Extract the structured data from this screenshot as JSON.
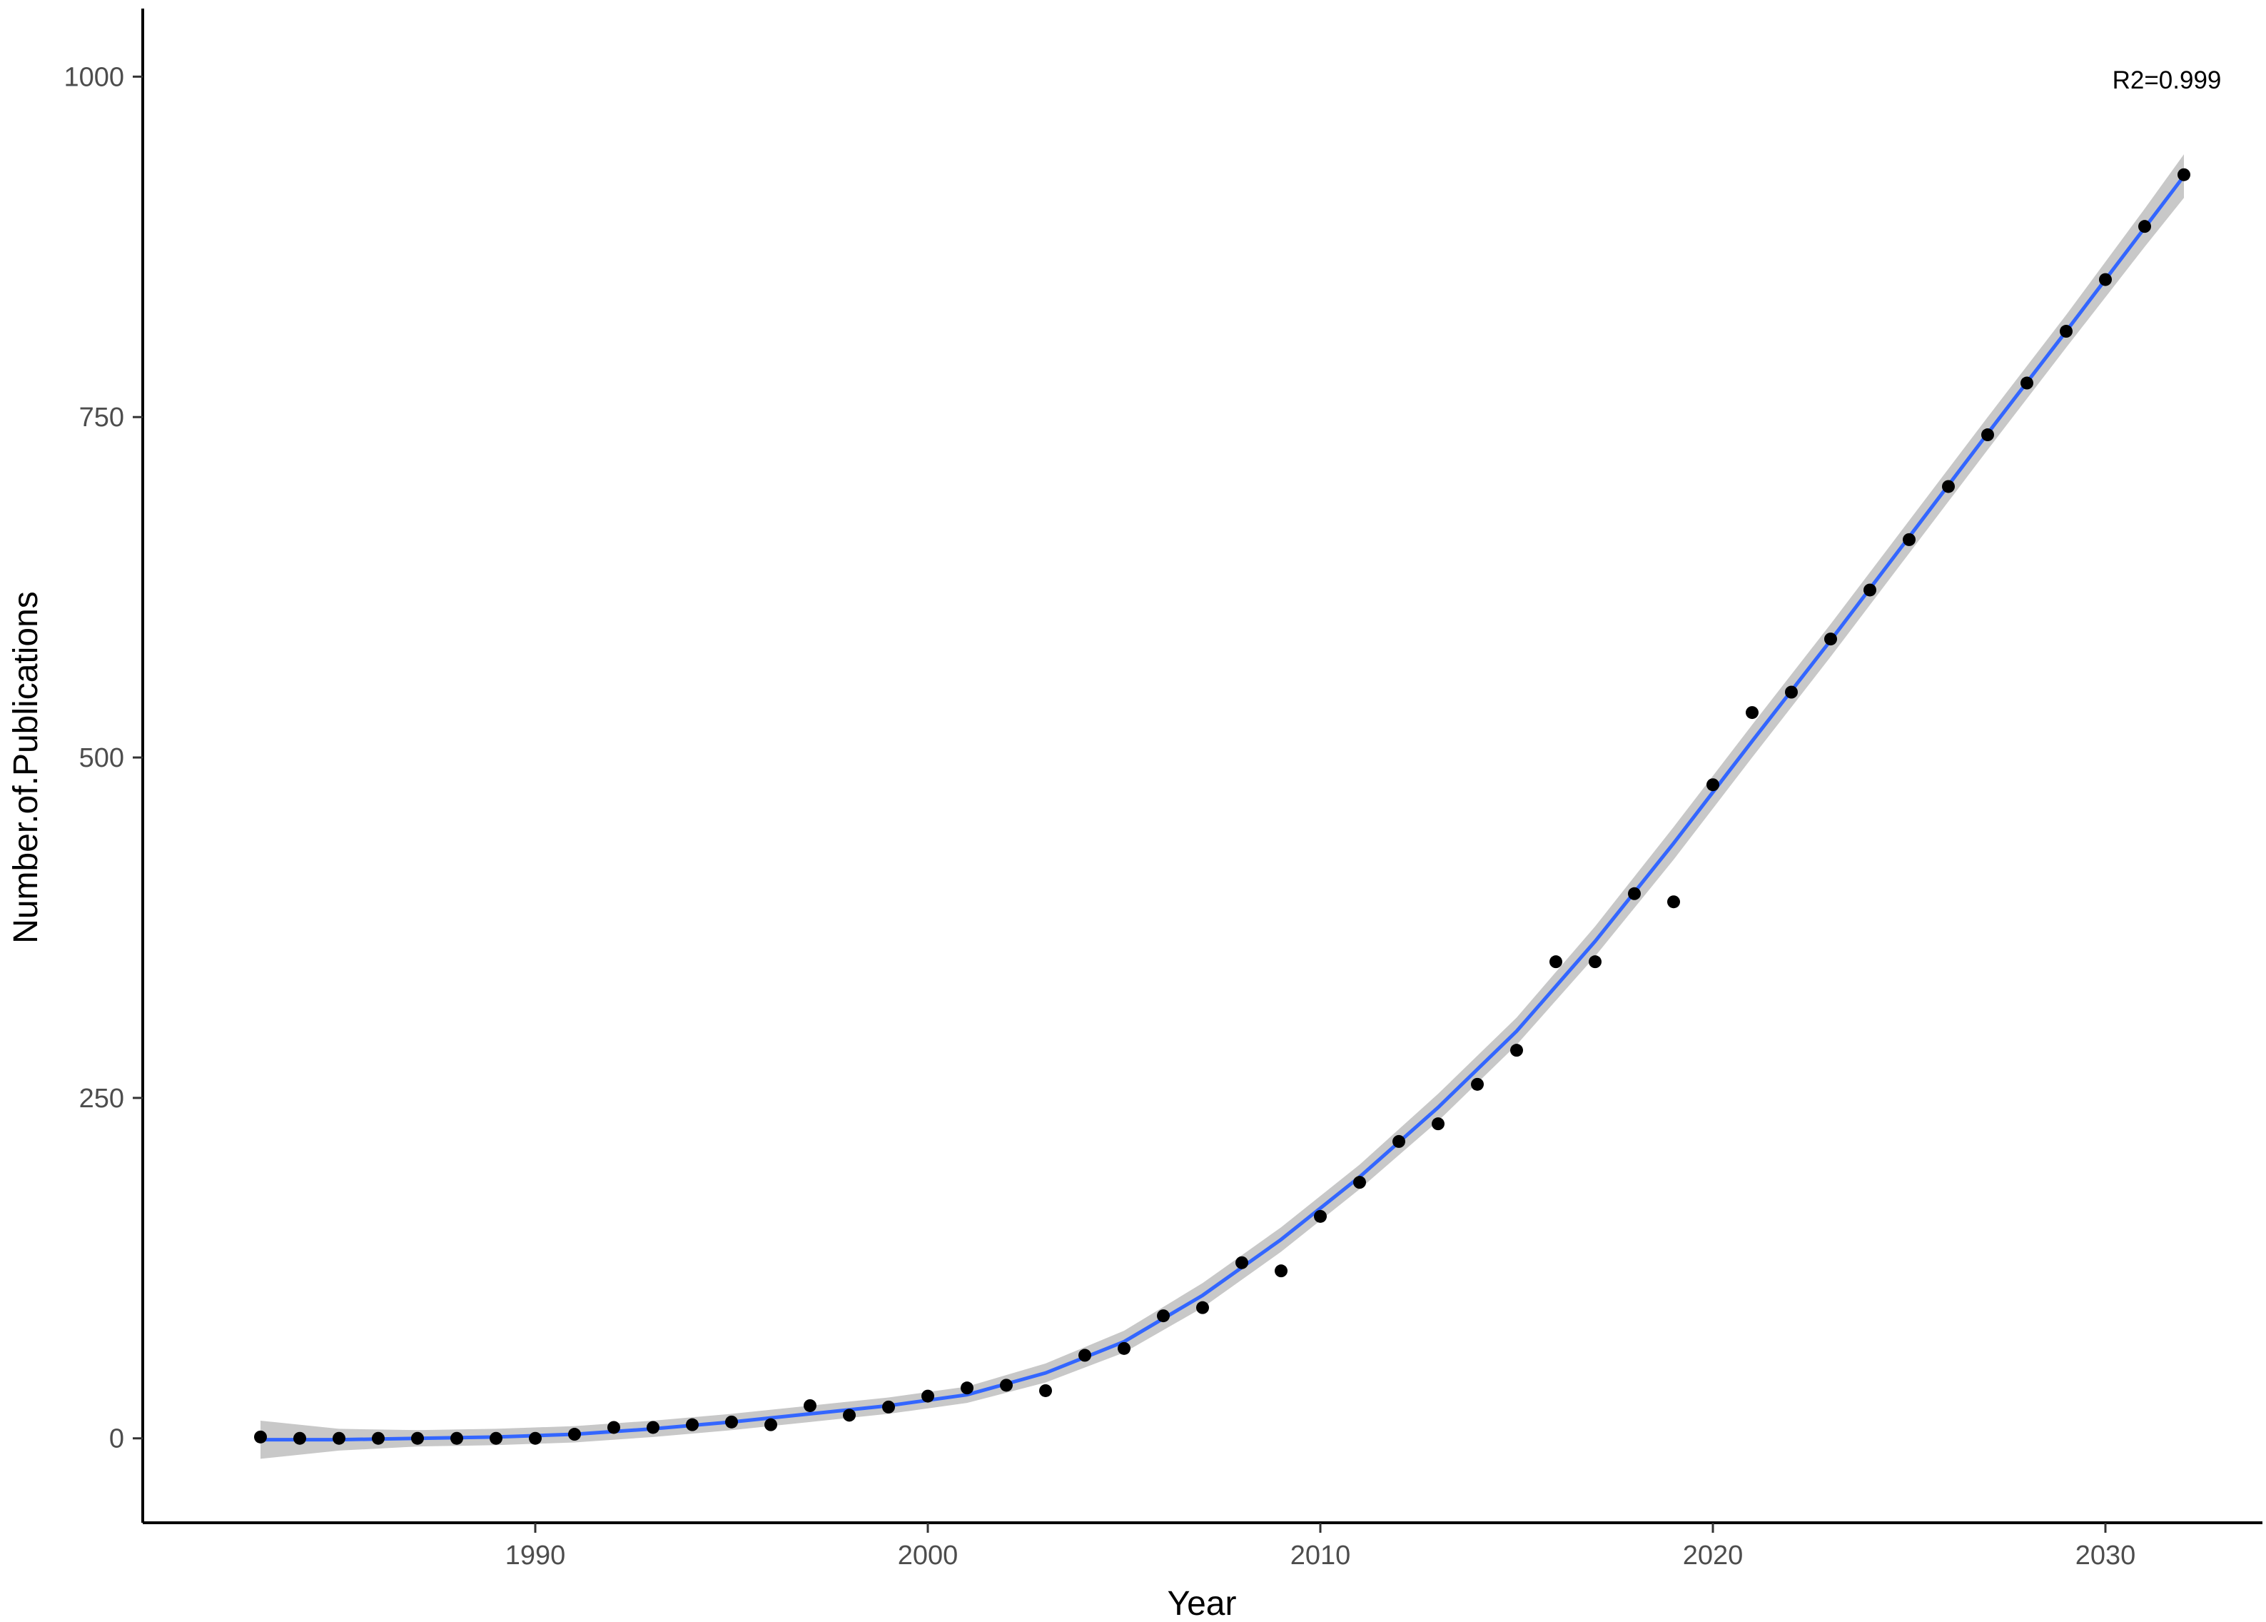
{
  "chart_data": {
    "type": "scatter",
    "title": "",
    "xlabel": "Year",
    "ylabel": "Number.of.Publications",
    "xlim": [
      1980,
      2034
    ],
    "ylim": [
      -62,
      1050
    ],
    "xticks": [
      1990,
      2000,
      2010,
      2020,
      2030
    ],
    "xtick_labels": [
      "1990",
      "2000",
      "2010",
      "2020",
      "2030"
    ],
    "yticks": [
      0,
      250,
      500,
      750,
      1000
    ],
    "ytick_labels": [
      "0",
      "250",
      "500",
      "750",
      "1000"
    ],
    "annotation": "R2=0.999",
    "grid": false,
    "colors": {
      "points": "#000000",
      "fit_line": "#3366ff",
      "confidence_band": "#c8c8c8",
      "axis": "#000000",
      "tick_text": "#4d4d4d"
    },
    "series": [
      {
        "kind": "points",
        "x": [
          1983,
          1984,
          1985,
          1986,
          1987,
          1988,
          1989,
          1990,
          1991,
          1992,
          1993,
          1994,
          1995,
          1996,
          1997,
          1998,
          1999,
          2000,
          2001,
          2002,
          2003,
          2004,
          2005,
          2006,
          2007,
          2008,
          2009,
          2010,
          2011,
          2012,
          2013,
          2014,
          2015,
          2016,
          2017,
          2018,
          2019,
          2020,
          2021,
          2022,
          2023,
          2024,
          2025,
          2026,
          2027,
          2028,
          2029,
          2030,
          2031,
          2032
        ],
        "y": [
          1,
          0,
          0,
          0,
          0,
          0,
          0,
          0,
          3,
          8,
          8,
          10,
          12,
          10,
          24,
          17,
          23,
          31,
          37,
          39,
          35,
          61,
          66,
          90,
          96,
          129,
          123,
          163,
          188,
          218,
          231,
          260,
          285,
          350,
          350,
          400,
          394,
          480,
          533,
          548,
          587,
          623,
          660,
          699,
          737,
          775,
          813,
          851,
          890,
          928
        ]
      },
      {
        "kind": "fit",
        "x": [
          1983,
          1985,
          1987,
          1989,
          1991,
          1993,
          1995,
          1997,
          1999,
          2001,
          2003,
          2005,
          2007,
          2009,
          2011,
          2013,
          2015,
          2017,
          2019,
          2021,
          2023,
          2025,
          2027,
          2029,
          2031,
          2032
        ],
        "y": [
          -1,
          -1,
          0,
          1,
          3,
          7,
          12,
          18,
          24,
          32,
          48,
          71,
          105,
          146,
          192,
          243,
          299,
          365,
          437,
          512,
          586,
          662,
          738,
          813,
          889,
          927
        ],
        "band": [
          14,
          8,
          6,
          6,
          6,
          6,
          6,
          6,
          6,
          6,
          7,
          8,
          9,
          9,
          9,
          10,
          10,
          11,
          12,
          12,
          12,
          12,
          12,
          12,
          14,
          16
        ]
      }
    ]
  }
}
